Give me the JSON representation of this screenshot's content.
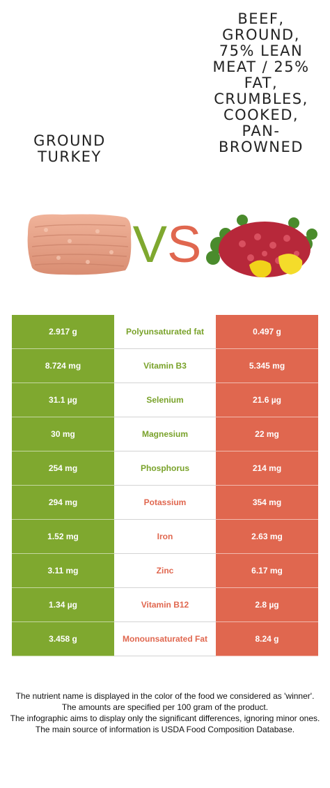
{
  "header": {
    "left_food": "GROUND\nTURKEY",
    "right_food": "BEEF,\nGROUND,\n75% LEAN\nMEAT / 25%\nFAT,\nCRUMBLES,\nCOOKED,\nPAN-\nBROWNED",
    "vs_text": "VS"
  },
  "colors": {
    "left": "#7fa82f",
    "right": "#e0674f"
  },
  "rows": [
    {
      "left": "2.917 g",
      "nutrient": "Polyunsaturated fat",
      "right": "0.497 g",
      "winner": "left"
    },
    {
      "left": "8.724 mg",
      "nutrient": "Vitamin B3",
      "right": "5.345 mg",
      "winner": "left"
    },
    {
      "left": "31.1 µg",
      "nutrient": "Selenium",
      "right": "21.6 µg",
      "winner": "left"
    },
    {
      "left": "30 mg",
      "nutrient": "Magnesium",
      "right": "22 mg",
      "winner": "left"
    },
    {
      "left": "254 mg",
      "nutrient": "Phosphorus",
      "right": "214 mg",
      "winner": "left"
    },
    {
      "left": "294 mg",
      "nutrient": "Potassium",
      "right": "354 mg",
      "winner": "right"
    },
    {
      "left": "1.52 mg",
      "nutrient": "Iron",
      "right": "2.63 mg",
      "winner": "right"
    },
    {
      "left": "3.11 mg",
      "nutrient": "Zinc",
      "right": "6.17 mg",
      "winner": "right"
    },
    {
      "left": "1.34 µg",
      "nutrient": "Vitamin B12",
      "right": "2.8 µg",
      "winner": "right"
    },
    {
      "left": "3.458 g",
      "nutrient": "Monounsaturated Fat",
      "right": "8.24 g",
      "winner": "right"
    }
  ],
  "footer": [
    "The nutrient name is displayed in the color of the food we considered as 'winner'.",
    "The amounts are specified per 100 gram of the product.",
    "The infographic aims to display only the significant differences, ignoring minor ones.",
    "The main source of information is USDA Food Composition Database."
  ]
}
